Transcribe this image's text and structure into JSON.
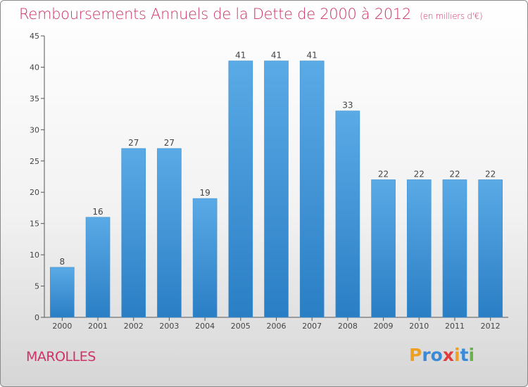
{
  "header": {
    "title": "Remboursements Annuels de la Dette de 2000 à 2012",
    "unit": "(en milliers d'€)"
  },
  "footer": {
    "commune": "MAROLLES",
    "brand": "Proxiti"
  },
  "colors": {
    "title": "#cc3366",
    "bar_light": "#5aaae6",
    "bar_dark": "#2a7ec4",
    "logo_letters": [
      "#f0a020",
      "#3a8ad8",
      "#3a8ad8",
      "#e03c3c",
      "#f0a020",
      "#3a8ad8",
      "#6ab04c"
    ]
  },
  "chart_data": {
    "type": "bar",
    "categories": [
      "2000",
      "2001",
      "2002",
      "2003",
      "2004",
      "2005",
      "2006",
      "2007",
      "2008",
      "2009",
      "2010",
      "2011",
      "2012"
    ],
    "values": [
      8,
      16,
      27,
      27,
      19,
      41,
      41,
      41,
      33,
      22,
      22,
      22,
      22
    ],
    "ylim": [
      0,
      45
    ],
    "yticks": [
      0,
      5,
      10,
      15,
      20,
      25,
      30,
      35,
      40,
      45
    ],
    "grid": false,
    "data_labels": true
  }
}
